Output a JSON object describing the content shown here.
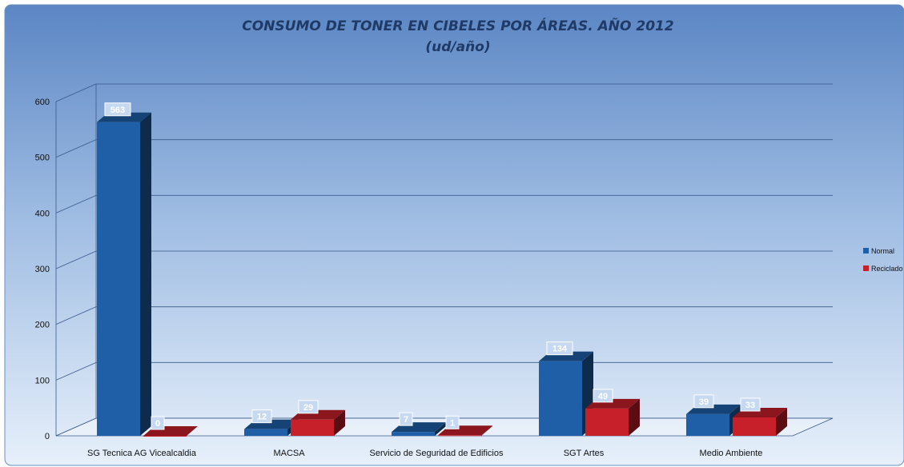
{
  "chart_data": {
    "type": "bar",
    "title": "CONSUMO DE TONER EN CIBELES POR ÁREAS. AÑO 2012",
    "subtitle": "(ud/año)",
    "categories": [
      "SG Tecnica AG Vicealcaldia",
      "MACSA",
      "Servicio de Seguridad de Edificios",
      "SGT Artes",
      "Medio Ambiente"
    ],
    "series": [
      {
        "name": "Normal",
        "values": [
          563,
          12,
          7,
          134,
          39
        ],
        "color": "#1f5fa8"
      },
      {
        "name": "Reciclado",
        "values": [
          0,
          29,
          1,
          49,
          33
        ],
        "color": "#c8202a"
      }
    ],
    "yticks": [
      0,
      100,
      200,
      300,
      400,
      500,
      600
    ],
    "ylim": [
      0,
      600
    ],
    "grid": true,
    "legend_position": "right",
    "three_d": true
  }
}
